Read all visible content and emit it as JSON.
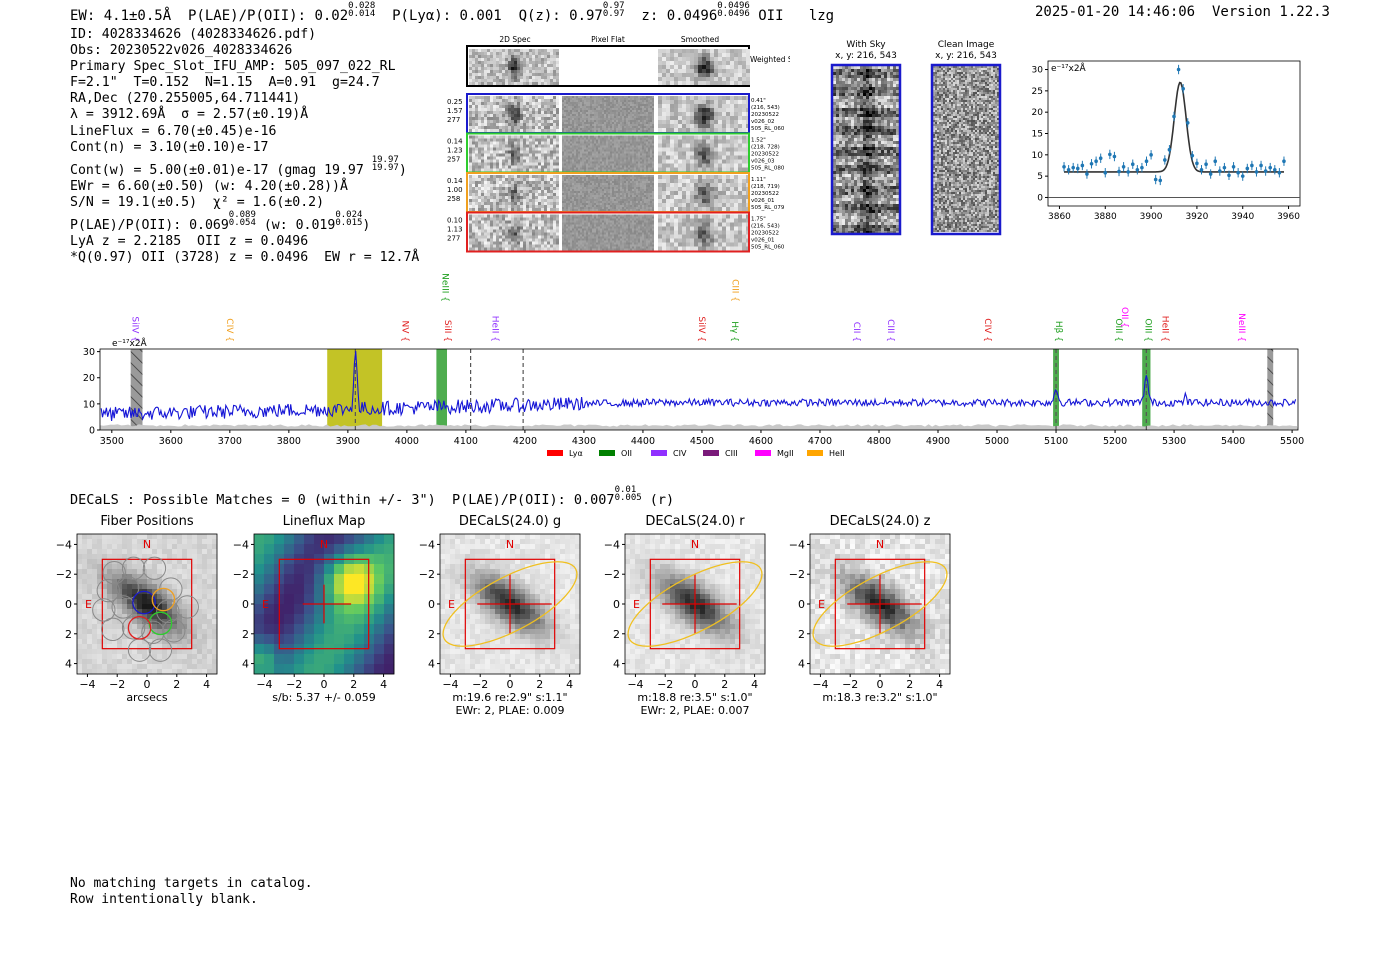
{
  "header": {
    "ew_text": "EW: 4.1±0.5Å",
    "plae_label": "P(LAE)/P(OII): 0.02",
    "plae_hi": "0.028",
    "plae_lo": "0.014",
    "plya": "P(Lyα): 0.001",
    "qz_label": "Q(z): 0.97",
    "qz_hi": "0.97",
    "qz_lo": "0.97",
    "z_label": "z: 0.0496",
    "z_hi": "0.0496",
    "z_lo": "0.0496",
    "z_line": "OII",
    "flag": "lzg",
    "timestamp": "2025-01-20 14:46:06",
    "version": "Version 1.22.3"
  },
  "info": {
    "id": "ID: 4028334626 (4028334626.pdf)",
    "obs": "Obs: 20230522v026_4028334626",
    "primary": "Primary Spec_Slot_IFU_AMP: 505_097_022_RL",
    "fit": "F=2.1\"  T=0.152  N=1.15  A=0.91  g=24.7",
    "radec": "RA,Dec (270.255005,64.711441)",
    "lambda": "λ = 3912.69Å  σ = 2.57(±0.19)Å",
    "lineflux": "LineFlux = 6.70(±0.45)e-16",
    "contn": "Cont(n) = 3.10(±0.10)e-17",
    "contw": "Cont(w) = 5.00(±0.01)e-17 (gmag 19.97",
    "gmag_hi": "19.97",
    "gmag_lo": "19.97",
    "ewr": "EWr = 6.60(±0.50) (w: 4.20(±0.28))Å",
    "sn": "S/N = 19.1(±0.5)  χ² = 1.6(±0.2)",
    "plae": "P(LAE)/P(OII): 0.069",
    "plae_hi": "0.089",
    "plae_lo": "0.054",
    "plae_w": "(w: 0.019",
    "plae_w_hi": "0.024",
    "plae_w_lo": "0.015",
    "lya": "LyA z = 2.2185  OII z = 0.0496",
    "q": "*Q(0.97) OII (3728) z = 0.0496  EW r = 12.7Å"
  },
  "cutouts": {
    "col_2d": "2D Spec",
    "col_flat": "Pixel Flat",
    "col_smooth": "Smoothed",
    "sum_label": "Weighted Sum",
    "rows": [
      {
        "left": [
          "0.25",
          "1.57",
          "277"
        ],
        "right": [
          "0.41\"",
          "(216, 543)",
          "20230522",
          "v026_02",
          "505_RL_060"
        ],
        "color": "#1a1acc"
      },
      {
        "left": [
          "0.14",
          "1.23",
          "257"
        ],
        "right": [
          "1.52\"",
          "(218, 728)",
          "20230522",
          "v026_03",
          "505_RL_080"
        ],
        "color": "#2ecc2e"
      },
      {
        "left": [
          "0.14",
          "1.00",
          "258"
        ],
        "right": [
          "1.11\"",
          "(218, 719)",
          "20230522",
          "v026_01",
          "505_RL_079"
        ],
        "color": "#f0a020"
      },
      {
        "left": [
          "0.10",
          "1.13",
          "277"
        ],
        "right": [
          "1.75\"",
          "(216, 543)",
          "20230522",
          "v026_01",
          "505_RL_060"
        ],
        "color": "#e02020"
      }
    ],
    "with_sky_title": "With Sky",
    "with_sky_xy": "x, y: 216, 543",
    "clean_title": "Clean Image",
    "clean_xy": "x, y: 216, 543"
  },
  "chart_data": [
    {
      "id": "zoom-fit",
      "type": "scatter",
      "title": "",
      "unit_label": "e⁻¹⁷x2Å",
      "xlim": [
        3855,
        3965
      ],
      "ylim": [
        -2,
        32
      ],
      "xticks": [
        3860,
        3880,
        3900,
        3920,
        3940,
        3960
      ],
      "yticks": [
        0,
        5,
        10,
        15,
        20,
        25,
        30
      ],
      "points": {
        "x": [
          3862,
          3864,
          3866,
          3868,
          3870,
          3872,
          3874,
          3876,
          3878,
          3880,
          3882,
          3884,
          3886,
          3888,
          3890,
          3892,
          3894,
          3896,
          3898,
          3900,
          3902,
          3904,
          3906,
          3908,
          3910,
          3912,
          3914,
          3916,
          3918,
          3920,
          3922,
          3924,
          3926,
          3928,
          3930,
          3932,
          3934,
          3936,
          3938,
          3940,
          3942,
          3944,
          3946,
          3948,
          3950,
          3952,
          3954,
          3956,
          3958
        ],
        "y": [
          7.2,
          6.5,
          7.0,
          6.8,
          7.5,
          5.5,
          7.9,
          8.5,
          9.2,
          5.8,
          10.1,
          9.6,
          6.1,
          7.2,
          6.0,
          7.8,
          6.5,
          7.0,
          8.5,
          10.0,
          4.2,
          4.0,
          8.8,
          11.2,
          19.0,
          30.0,
          25.5,
          17.5,
          9.8,
          8.0,
          6.5,
          7.8,
          5.5,
          8.5,
          6.2,
          7.0,
          5.2,
          7.2,
          5.8,
          5.0,
          6.8,
          7.5,
          6.0,
          7.5,
          6.2,
          7.0,
          6.5,
          5.8,
          8.5
        ]
      },
      "model": {
        "continuum": 6.0,
        "amplitude": 21.0,
        "center": 3912.7,
        "sigma": 2.57
      }
    },
    {
      "id": "full-spectrum",
      "type": "line",
      "unit_label": "e⁻¹⁷x2Å",
      "xlim": [
        3480,
        5510
      ],
      "ylim": [
        0,
        31
      ],
      "xticks": [
        3500,
        3600,
        3700,
        3800,
        3900,
        4000,
        4100,
        4200,
        4300,
        4400,
        4500,
        4600,
        4700,
        4800,
        4900,
        5000,
        5100,
        5200,
        5300,
        5400,
        5500
      ],
      "yticks": [
        0,
        10,
        20,
        30
      ],
      "continuum_start": 6.0,
      "continuum_end": 10.5,
      "emission_peaks": [
        {
          "wave": 3912.7,
          "height": 23.0,
          "sigma": 2.6
        },
        {
          "wave": 5100.0,
          "height": 5.5,
          "sigma": 3.0
        },
        {
          "wave": 5253.0,
          "height": 10.5,
          "sigma": 3.0
        },
        {
          "wave": 5320.0,
          "height": 6.0,
          "sigma": 1.0
        }
      ],
      "shaded_regions": [
        {
          "from": 3532,
          "to": 3552,
          "color": "#9a9a9a",
          "hatch": true
        },
        {
          "from": 3865,
          "to": 3958,
          "color": "#b8b800",
          "hatch": false
        },
        {
          "from": 4050,
          "to": 4068,
          "color": "#2f9e2f",
          "hatch": false
        },
        {
          "from": 5095,
          "to": 5105,
          "color": "#2f9e2f",
          "hatch": false
        },
        {
          "from": 5246,
          "to": 5260,
          "color": "#2f9e2f",
          "hatch": false
        },
        {
          "from": 5458,
          "to": 5468,
          "color": "#9a9a9a",
          "hatch": true
        }
      ],
      "dashed_lines": [
        3912.7,
        4108,
        4197,
        5100,
        5253
      ],
      "line_labels": [
        {
          "label": "SiIV",
          "wave": 3535,
          "color": "#9030ff",
          "row": 2
        },
        {
          "label": "CIV",
          "wave": 3695,
          "color": "#f0a020",
          "row": 2
        },
        {
          "label": "NV",
          "wave": 3993,
          "color": "#e02020",
          "row": 2
        },
        {
          "label": "NeIII",
          "wave": 4060,
          "color": "#20a020",
          "row": 0
        },
        {
          "label": "SiII",
          "wave": 4065,
          "color": "#e02020",
          "row": 2
        },
        {
          "label": "HeII",
          "wave": 4145,
          "color": "#9030ff",
          "row": 2
        },
        {
          "label": "SiIV",
          "wave": 4495,
          "color": "#e02020",
          "row": 2
        },
        {
          "label": "Hγ",
          "wave": 4551,
          "color": "#20a020",
          "row": 2
        },
        {
          "label": "CIII",
          "wave": 4552,
          "color": "#f0a020",
          "row": 0
        },
        {
          "label": "CII",
          "wave": 4758,
          "color": "#9030ff",
          "row": 2
        },
        {
          "label": "CIII",
          "wave": 4815,
          "color": "#9030ff",
          "row": 2
        },
        {
          "label": "CIV",
          "wave": 4980,
          "color": "#e02020",
          "row": 2
        },
        {
          "label": "Hβ",
          "wave": 5100,
          "color": "#20a020",
          "row": 2
        },
        {
          "label": "OIII",
          "wave": 5202,
          "color": "#20a020",
          "row": 2
        },
        {
          "label": "OII",
          "wave": 5212,
          "color": "#ff00ff",
          "row": 1
        },
        {
          "label": "OIII",
          "wave": 5252,
          "color": "#20a020",
          "row": 2
        },
        {
          "label": "HeII",
          "wave": 5280,
          "color": "#e02020",
          "row": 2
        },
        {
          "label": "NeIII",
          "wave": 5410,
          "color": "#ff00ff",
          "row": 2
        }
      ],
      "legend": [
        {
          "label": "Lyα",
          "color": "#ff0000"
        },
        {
          "label": "OII",
          "color": "#008000"
        },
        {
          "label": "CIV",
          "color": "#9030ff"
        },
        {
          "label": "CIII",
          "color": "#7a1a7a"
        },
        {
          "label": "MgII",
          "color": "#ff00ff"
        },
        {
          "label": "HeII",
          "color": "#ffa500"
        }
      ]
    }
  ],
  "decals": {
    "summary": "DECaLS : Possible Matches = 0 (within +/- 3\")  P(LAE)/P(OII): 0.007",
    "summary_hi": "0.01",
    "summary_lo": "0.005",
    "summary_band": "(r)",
    "panels": [
      {
        "title": "Fiber Positions",
        "caption": "arcsecs",
        "caption2": "",
        "style": "fiber"
      },
      {
        "title": "Lineflux Map",
        "caption": "s/b: 5.37 +/- 0.059",
        "caption2": "",
        "style": "lineflux"
      },
      {
        "title": "DECaLS(24.0) g",
        "caption": "m:19.6  re:2.9\"  s:1.1\"",
        "caption2": "EWr: 2, PLAE: 0.009",
        "style": "g"
      },
      {
        "title": "DECaLS(24.0) r",
        "caption": "m:18.8  re:3.5\"  s:1.0\"",
        "caption2": "EWr: 2, PLAE: 0.007",
        "style": "r"
      },
      {
        "title": "DECaLS(24.0) z",
        "caption": "m:18.3  re:3.2\"  s:1.0\"",
        "caption2": "",
        "style": "z"
      }
    ],
    "ticks": [
      "−4",
      "−2",
      "0",
      "2",
      "4"
    ],
    "north": "N",
    "east": "E"
  },
  "footer": {
    "line1": "No matching targets in catalog.",
    "line2": "Row intentionally blank."
  }
}
